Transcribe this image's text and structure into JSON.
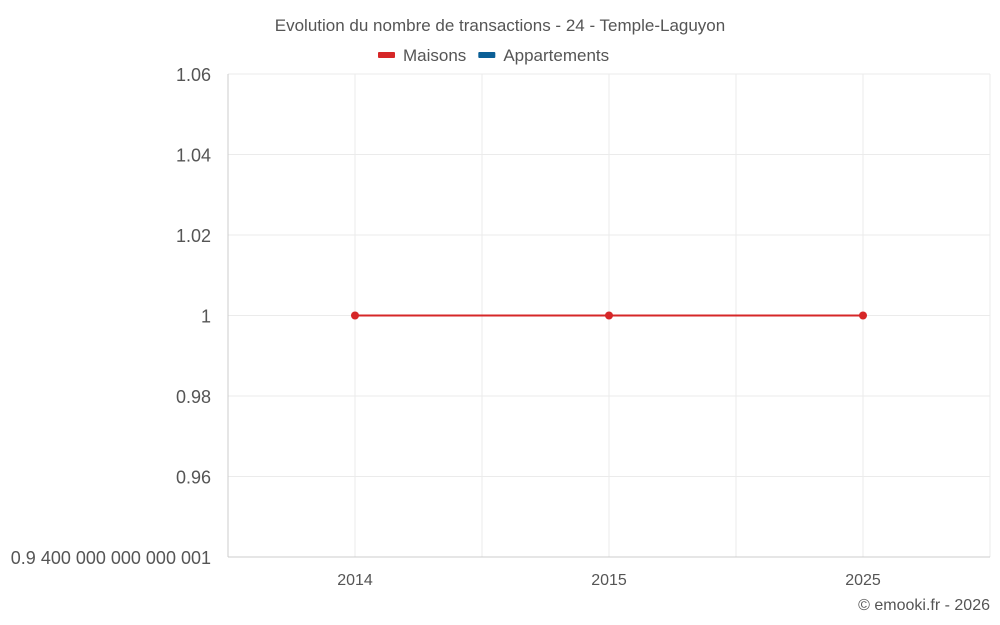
{
  "chart_data": {
    "type": "line",
    "title": "Evolution du nombre de transactions - 24 - Temple-Laguyon",
    "categories": [
      "2014",
      "2015",
      "2025"
    ],
    "series": [
      {
        "name": "Maisons",
        "color": "#d62728",
        "values": [
          1,
          1,
          1
        ]
      },
      {
        "name": "Appartements",
        "color": "#0b5f96",
        "values": [
          null,
          null,
          null
        ]
      }
    ],
    "ylim": [
      0.94,
      1.06
    ],
    "y_ticks": [
      0.94,
      0.96,
      0.98,
      1,
      1.02,
      1.04,
      1.06
    ],
    "y_tick_labels": [
      "0.9 400 000 000 000 001",
      "0.96",
      "0.98",
      "1",
      "1.02",
      "1.04",
      "1.06"
    ],
    "xlabel": "",
    "ylabel": "",
    "grid": true,
    "legend_position": "top-center"
  },
  "credit": "© emooki.fr - 2026"
}
